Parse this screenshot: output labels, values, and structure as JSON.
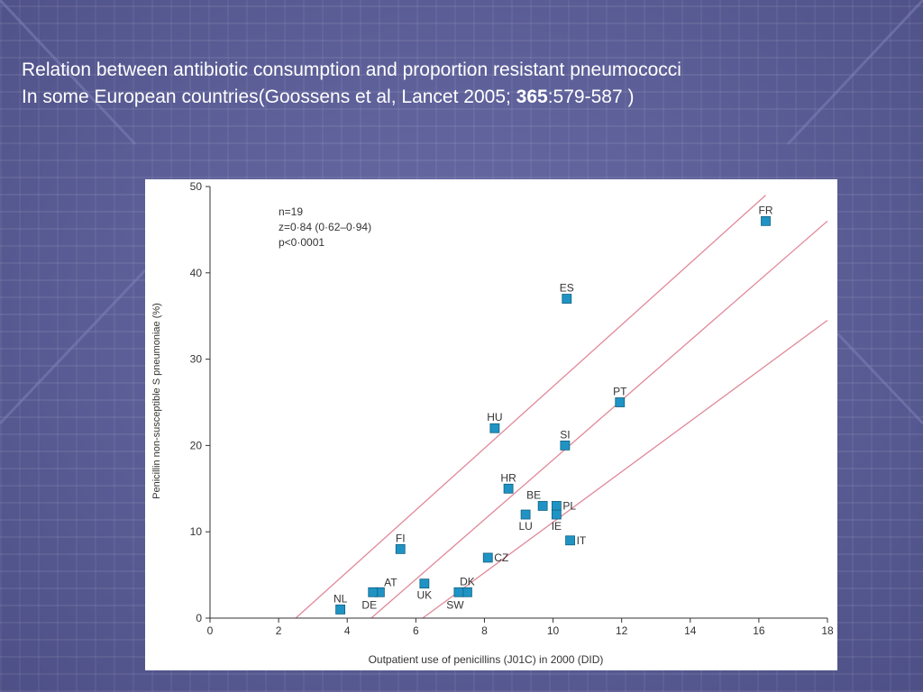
{
  "slide": {
    "title_line1": "Relation between antibiotic consumption and proportion resistant pneumococci",
    "title_line2_prefix": "In some European countries(Goossens et al, Lancet 2005; ",
    "title_line2_bold": "365",
    "title_line2_suffix": ":579-587 )"
  },
  "colors": {
    "marker": "#1f94c4",
    "marker_edge": "#115f80",
    "fit_line": "#e0899a",
    "axis": "#333333"
  },
  "chart_data": {
    "type": "scatter",
    "xlabel": "Outpatient use of penicillins (J01C) in 2000 (DID)",
    "ylabel": "Penicillin non-susceptible S pneumoniae (%)",
    "xlim": [
      0,
      18
    ],
    "ylim": [
      0,
      50
    ],
    "x_ticks": [
      0,
      2,
      4,
      6,
      8,
      10,
      12,
      14,
      16,
      18
    ],
    "y_ticks": [
      0,
      10,
      20,
      30,
      40,
      50
    ],
    "grid": false,
    "annotations": [
      "n=19",
      "z=0·84 (0·62–0·94)",
      "p<0·0001"
    ],
    "points": [
      {
        "label": "FR",
        "x": 16.2,
        "y": 46,
        "label_pos": "above"
      },
      {
        "label": "ES",
        "x": 10.4,
        "y": 37,
        "label_pos": "above"
      },
      {
        "label": "PT",
        "x": 11.95,
        "y": 25,
        "label_pos": "above"
      },
      {
        "label": "HU",
        "x": 8.3,
        "y": 22,
        "label_pos": "above"
      },
      {
        "label": "SI",
        "x": 10.35,
        "y": 20,
        "label_pos": "above"
      },
      {
        "label": "HR",
        "x": 8.7,
        "y": 15,
        "label_pos": "above"
      },
      {
        "label": "BE",
        "x": 9.7,
        "y": 13,
        "label_pos": "above-left"
      },
      {
        "label": "PL",
        "x": 10.1,
        "y": 13,
        "label_pos": "right"
      },
      {
        "label": "LU",
        "x": 9.2,
        "y": 12,
        "label_pos": "below"
      },
      {
        "label": "IE",
        "x": 10.1,
        "y": 12,
        "label_pos": "below"
      },
      {
        "label": "IT",
        "x": 10.5,
        "y": 9,
        "label_pos": "right"
      },
      {
        "label": "FI",
        "x": 5.55,
        "y": 8,
        "label_pos": "above"
      },
      {
        "label": "CZ",
        "x": 8.1,
        "y": 7,
        "label_pos": "right"
      },
      {
        "label": "UK",
        "x": 6.25,
        "y": 4,
        "label_pos": "below"
      },
      {
        "label": "AT",
        "x": 4.95,
        "y": 3,
        "label_pos": "above-right"
      },
      {
        "label": "DE",
        "x": 4.75,
        "y": 3,
        "label_pos": "below-left"
      },
      {
        "label": "DK",
        "x": 7.5,
        "y": 3,
        "label_pos": "above"
      },
      {
        "label": "SW",
        "x": 7.25,
        "y": 3,
        "label_pos": "below-left"
      },
      {
        "label": "NL",
        "x": 3.8,
        "y": 1,
        "label_pos": "above"
      }
    ],
    "regression_lines": [
      {
        "name": "upper",
        "points": [
          [
            2.5,
            0
          ],
          [
            16.2,
            49
          ]
        ]
      },
      {
        "name": "fit",
        "points": [
          [
            4.7,
            0
          ],
          [
            18,
            46
          ]
        ]
      },
      {
        "name": "lower",
        "points": [
          [
            6.2,
            0
          ],
          [
            18,
            34.5
          ]
        ]
      }
    ]
  }
}
